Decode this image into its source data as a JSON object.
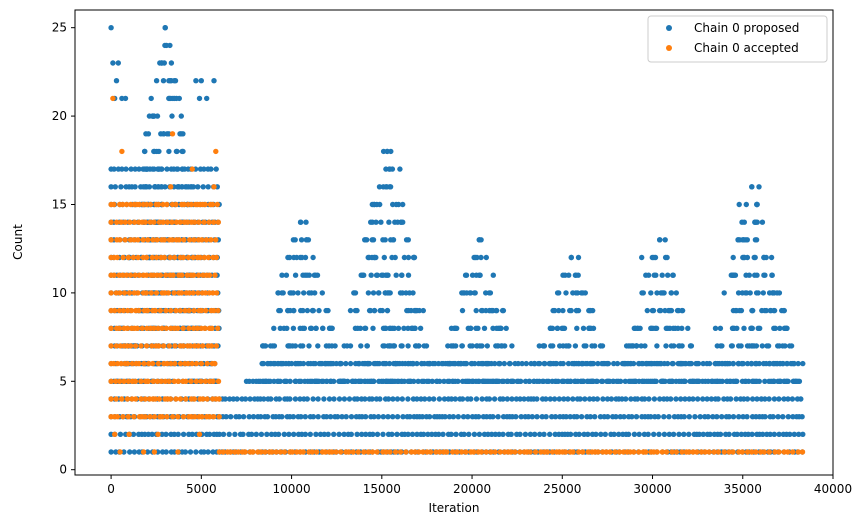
{
  "chart_data": {
    "type": "scatter",
    "title": "",
    "xlabel": "Iteration",
    "ylabel": "Count",
    "xlim": [
      -2000,
      40000
    ],
    "ylim": [
      -0.3,
      26
    ],
    "x_ticks": [
      0,
      5000,
      10000,
      15000,
      20000,
      25000,
      30000,
      35000,
      40000
    ],
    "y_ticks": [
      0,
      5,
      10,
      15,
      20,
      25
    ],
    "grid": false,
    "legend_position": "top-right",
    "series": [
      {
        "name": "Chain 0 proposed",
        "color": "#1f77b4",
        "bands": [
          {
            "x0": 0,
            "x1": 6000,
            "y_values": [
              1,
              2,
              3,
              4,
              5,
              6,
              7,
              8,
              9,
              10,
              11,
              12,
              13,
              14,
              15,
              16,
              17
            ]
          },
          {
            "x0": 6000,
            "x1": 38400,
            "y_values": [
              1,
              2,
              3,
              4
            ]
          },
          {
            "x0": 7500,
            "x1": 38400,
            "y_values": [
              5
            ]
          },
          {
            "x0": 9000,
            "x1": 38400,
            "y_values": [
              6
            ]
          }
        ],
        "peaks": [
          {
            "center": 3000,
            "half_width": 3000,
            "max_y": 25
          },
          {
            "center": 10500,
            "half_width": 2800,
            "max_y": 14
          },
          {
            "center": 15300,
            "half_width": 3000,
            "max_y": 18
          },
          {
            "center": 20400,
            "half_width": 2600,
            "max_y": 13
          },
          {
            "center": 25500,
            "half_width": 2600,
            "max_y": 12
          },
          {
            "center": 30400,
            "half_width": 2600,
            "max_y": 13
          },
          {
            "center": 35500,
            "half_width": 2800,
            "max_y": 16
          }
        ],
        "points": [
          [
            0,
            25
          ],
          [
            100,
            23
          ],
          [
            400,
            23
          ],
          [
            300,
            22
          ],
          [
            3500,
            22
          ],
          [
            4700,
            22
          ],
          [
            5000,
            22
          ],
          [
            5700,
            22
          ],
          [
            200,
            21
          ],
          [
            600,
            21
          ],
          [
            800,
            21
          ],
          [
            3200,
            21
          ],
          [
            4900,
            21
          ],
          [
            5300,
            21
          ],
          [
            15100,
            18
          ],
          [
            15500,
            18
          ],
          [
            16000,
            17
          ],
          [
            35900,
            16
          ],
          [
            34800,
            15
          ],
          [
            15800,
            15
          ],
          [
            10800,
            14
          ],
          [
            10200,
            13
          ],
          [
            20500,
            13
          ],
          [
            30700,
            13
          ],
          [
            35700,
            13
          ],
          [
            25900,
            12
          ],
          [
            29400,
            12
          ]
        ]
      },
      {
        "name": "Chain 0 accepted",
        "color": "#ff7f0e",
        "bands": [
          {
            "x0": 0,
            "x1": 6000,
            "y_values": [
              5,
              6,
              7,
              8,
              9,
              10,
              11
            ]
          },
          {
            "x0": 0,
            "x1": 6000,
            "y_values": [
              3,
              4,
              12,
              13,
              14,
              15
            ]
          },
          {
            "x0": 6000,
            "x1": 38400,
            "y_values": [
              1
            ]
          }
        ],
        "points": [
          [
            100,
            21
          ],
          [
            3400,
            19
          ],
          [
            5800,
            18
          ],
          [
            600,
            18
          ],
          [
            4500,
            17
          ],
          [
            3300,
            16
          ],
          [
            5700,
            16
          ],
          [
            4800,
            15
          ],
          [
            200,
            2
          ],
          [
            1000,
            2
          ],
          [
            2600,
            2
          ],
          [
            4900,
            2
          ],
          [
            1800,
            1
          ],
          [
            500,
            1
          ],
          [
            2400,
            1
          ],
          [
            3700,
            1
          ]
        ]
      }
    ]
  }
}
